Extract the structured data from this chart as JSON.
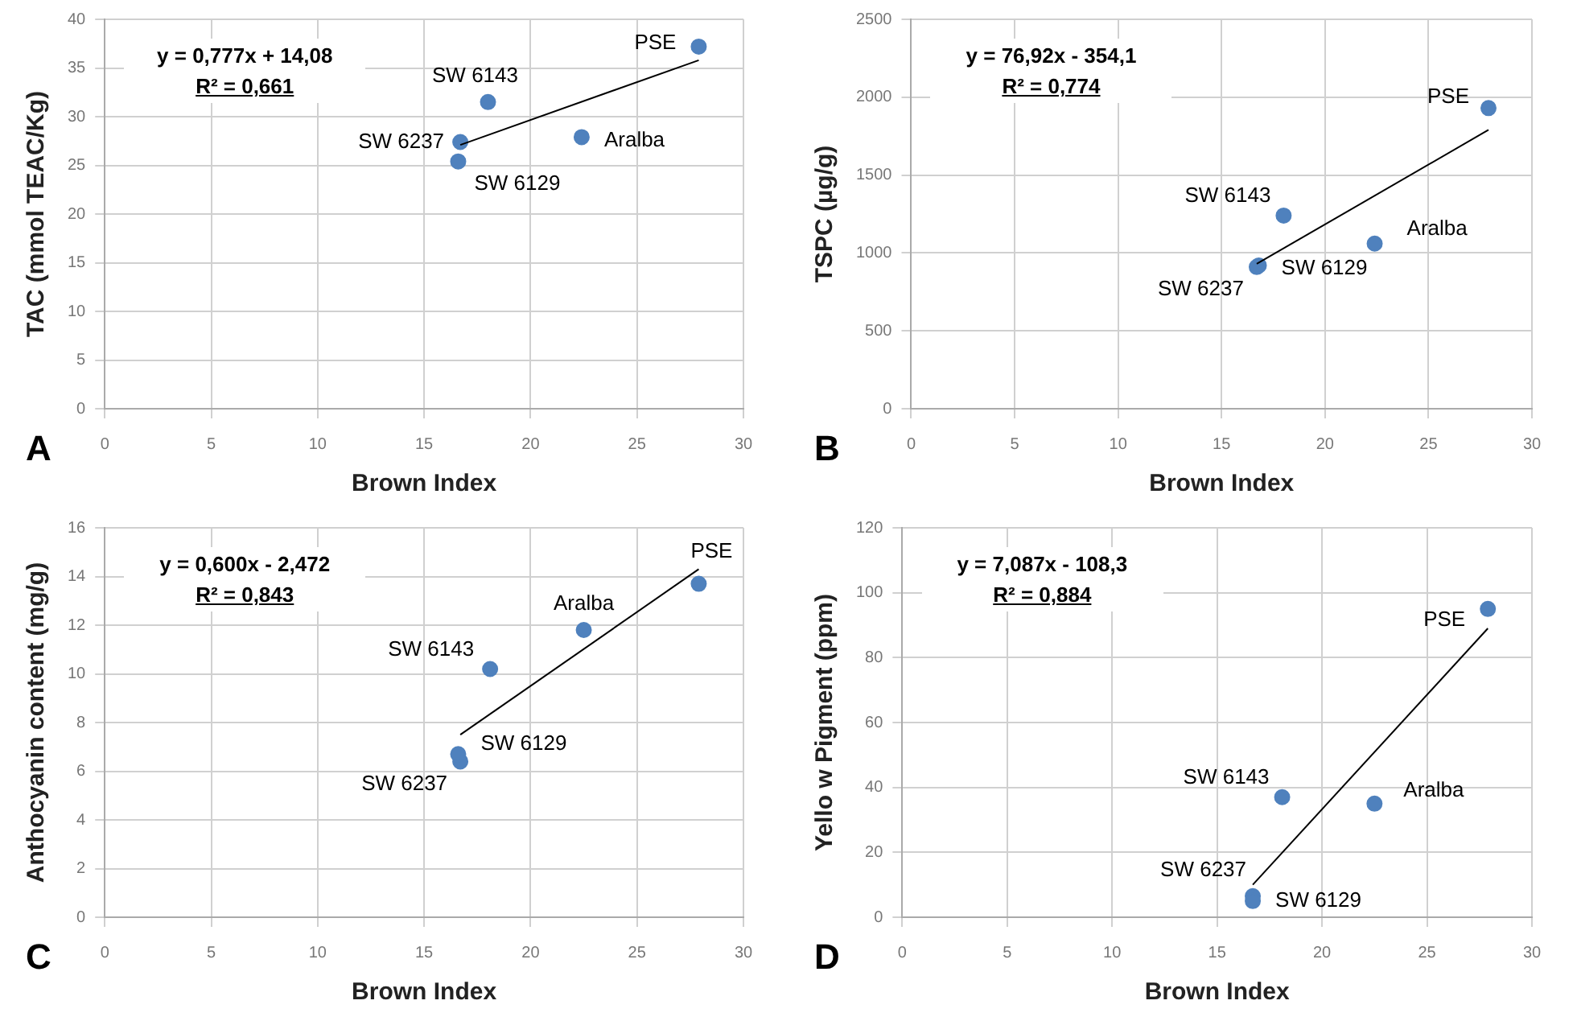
{
  "chart_data": [
    {
      "type": "scatter",
      "xlabel": "Brown Index",
      "ylabel": "TAC (mmol TEAC/Kg)",
      "xlim": [
        0,
        30
      ],
      "xticks": [
        0,
        5,
        10,
        15,
        20,
        25,
        30
      ],
      "ylim": [
        0,
        40
      ],
      "yticks": [
        0,
        5,
        10,
        15,
        20,
        25,
        30,
        35,
        40
      ],
      "grid": true,
      "legend": false,
      "series": [
        {
          "type": "scatter",
          "color": "#4f81bd",
          "marker": "circle",
          "x": [
            16.7,
            16.6,
            18.0,
            22.4,
            27.9
          ],
          "values": [
            27.4,
            25.4,
            31.5,
            27.9,
            37.2
          ]
        },
        {
          "type": "line",
          "color": "#000000",
          "marker": "none",
          "line_style": "solid",
          "x": [
            16.7,
            27.9
          ],
          "values": [
            27.1,
            35.8
          ]
        }
      ],
      "annotations": [
        "y = 0,777x + 14,08",
        "R² = 0,661",
        "A",
        {
          "text": "SW 6237",
          "x": 16.7,
          "y": 27.4
        },
        {
          "text": "SW 6129",
          "x": 16.6,
          "y": 25.4
        },
        {
          "text": "SW 6143",
          "x": 18.0,
          "y": 31.5
        },
        {
          "text": "Aralba",
          "x": 22.4,
          "y": 27.9
        },
        {
          "text": "PSE",
          "x": 27.9,
          "y": 37.2
        }
      ]
    },
    {
      "type": "scatter",
      "xlabel": "Brown Index",
      "ylabel": "TSPC (µg/g)",
      "xlim": [
        0,
        30
      ],
      "xticks": [
        0,
        5,
        10,
        15,
        20,
        25,
        30
      ],
      "ylim": [
        0,
        2500
      ],
      "yticks": [
        0,
        500,
        1000,
        1500,
        2000,
        2500
      ],
      "grid": true,
      "legend": false,
      "series": [
        {
          "type": "scatter",
          "color": "#4f81bd",
          "marker": "circle",
          "x": [
            16.7,
            16.8,
            18.0,
            22.4,
            27.9
          ],
          "values": [
            910,
            920,
            1240,
            1060,
            1930
          ]
        },
        {
          "type": "line",
          "color": "#000000",
          "marker": "none",
          "line_style": "solid",
          "x": [
            16.7,
            27.9
          ],
          "values": [
            930,
            1790
          ]
        }
      ],
      "annotations": [
        "y = 76,92x - 354,1",
        "R² = 0,774",
        "B",
        {
          "text": "SW 6237",
          "x": 16.7,
          "y": 910
        },
        {
          "text": "SW 6129",
          "x": 16.8,
          "y": 920
        },
        {
          "text": "SW 6143",
          "x": 18.0,
          "y": 1240
        },
        {
          "text": "Aralba",
          "x": 22.4,
          "y": 1060
        },
        {
          "text": "PSE",
          "x": 27.9,
          "y": 1930
        }
      ]
    },
    {
      "type": "scatter",
      "xlabel": "Brown Index",
      "ylabel": "Anthocyanin content (mg/g)",
      "xlim": [
        0,
        30
      ],
      "xticks": [
        0,
        5,
        10,
        15,
        20,
        25,
        30
      ],
      "ylim": [
        0,
        16
      ],
      "yticks": [
        0,
        2,
        4,
        6,
        8,
        10,
        12,
        14,
        16
      ],
      "grid": true,
      "legend": false,
      "series": [
        {
          "type": "scatter",
          "color": "#4f81bd",
          "marker": "circle",
          "x": [
            16.7,
            16.6,
            18.1,
            22.5,
            27.9
          ],
          "values": [
            6.4,
            6.7,
            10.2,
            11.8,
            13.7
          ]
        },
        {
          "type": "line",
          "color": "#000000",
          "marker": "none",
          "line_style": "solid",
          "x": [
            16.7,
            27.9
          ],
          "values": [
            7.5,
            14.3
          ]
        }
      ],
      "annotations": [
        "y = 0,600x - 2,472",
        "R² = 0,843",
        "C",
        {
          "text": "SW 6237",
          "x": 16.7,
          "y": 6.4
        },
        {
          "text": "SW 6129",
          "x": 16.6,
          "y": 6.7
        },
        {
          "text": "SW 6143",
          "x": 18.1,
          "y": 10.2
        },
        {
          "text": "Aralba",
          "x": 22.5,
          "y": 11.8
        },
        {
          "text": "PSE",
          "x": 27.9,
          "y": 13.7
        }
      ]
    },
    {
      "type": "scatter",
      "xlabel": "Brown Index",
      "ylabel": "Yello w Pigment (ppm)",
      "xlim": [
        0,
        30
      ],
      "xticks": [
        0,
        5,
        10,
        15,
        20,
        25,
        30
      ],
      "ylim": [
        0,
        120
      ],
      "yticks": [
        0,
        20,
        40,
        60,
        80,
        100,
        120
      ],
      "grid": true,
      "legend": false,
      "series": [
        {
          "type": "scatter",
          "color": "#4f81bd",
          "marker": "circle",
          "x": [
            16.7,
            16.7,
            18.1,
            22.5,
            27.9
          ],
          "values": [
            6.5,
            5,
            37,
            35,
            95
          ]
        },
        {
          "type": "line",
          "color": "#000000",
          "marker": "none",
          "line_style": "solid",
          "x": [
            16.7,
            27.9
          ],
          "values": [
            10,
            89
          ]
        }
      ],
      "annotations": [
        "y = 7,087x - 108,3",
        "R² = 0,884",
        "D",
        {
          "text": "SW 6237",
          "x": 16.7,
          "y": 6.5
        },
        {
          "text": "SW 6129",
          "x": 16.7,
          "y": 5
        },
        {
          "text": "SW 6143",
          "x": 18.1,
          "y": 37
        },
        {
          "text": "Aralba",
          "x": 22.5,
          "y": 35
        },
        {
          "text": "PSE",
          "x": 27.9,
          "y": 95
        }
      ]
    }
  ]
}
